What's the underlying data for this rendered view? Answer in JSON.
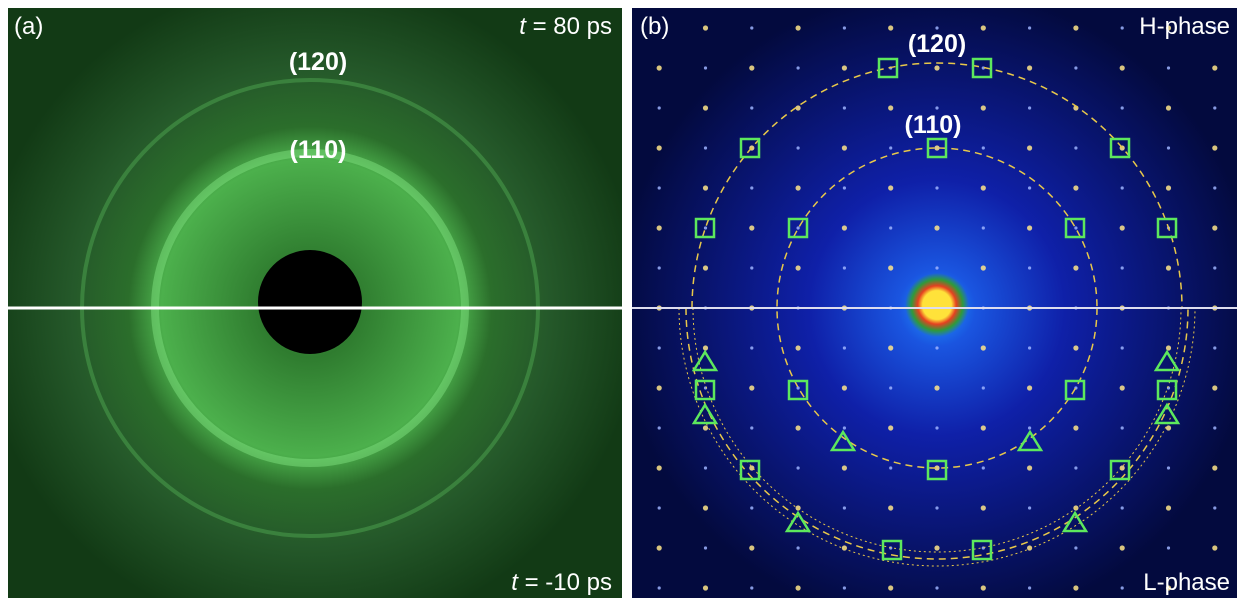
{
  "panel_a": {
    "label": "(a)",
    "time_top": {
      "variable": "t",
      "rest": " = 80 ps"
    },
    "time_bottom": {
      "variable": "t",
      "rest": " = -10 ps"
    },
    "ring_outer": "(120)",
    "ring_inner": "(110)"
  },
  "panel_b": {
    "label": "(b)",
    "phase_top": "H-phase",
    "phase_bottom": "L-phase",
    "ring_outer": "(120)",
    "ring_inner": "(110)"
  }
}
